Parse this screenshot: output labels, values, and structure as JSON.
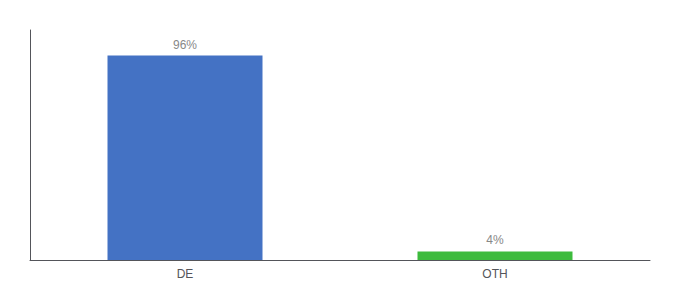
{
  "chart_data": {
    "type": "bar",
    "categories": [
      "DE",
      "OTH"
    ],
    "values": [
      96,
      4
    ],
    "value_labels": [
      "96%",
      "4%"
    ],
    "colors": [
      "#4472c4",
      "#3dbb3d"
    ],
    "ylim": [
      0,
      108
    ],
    "data_labels": true,
    "tick_labels": "x",
    "grid": false
  }
}
